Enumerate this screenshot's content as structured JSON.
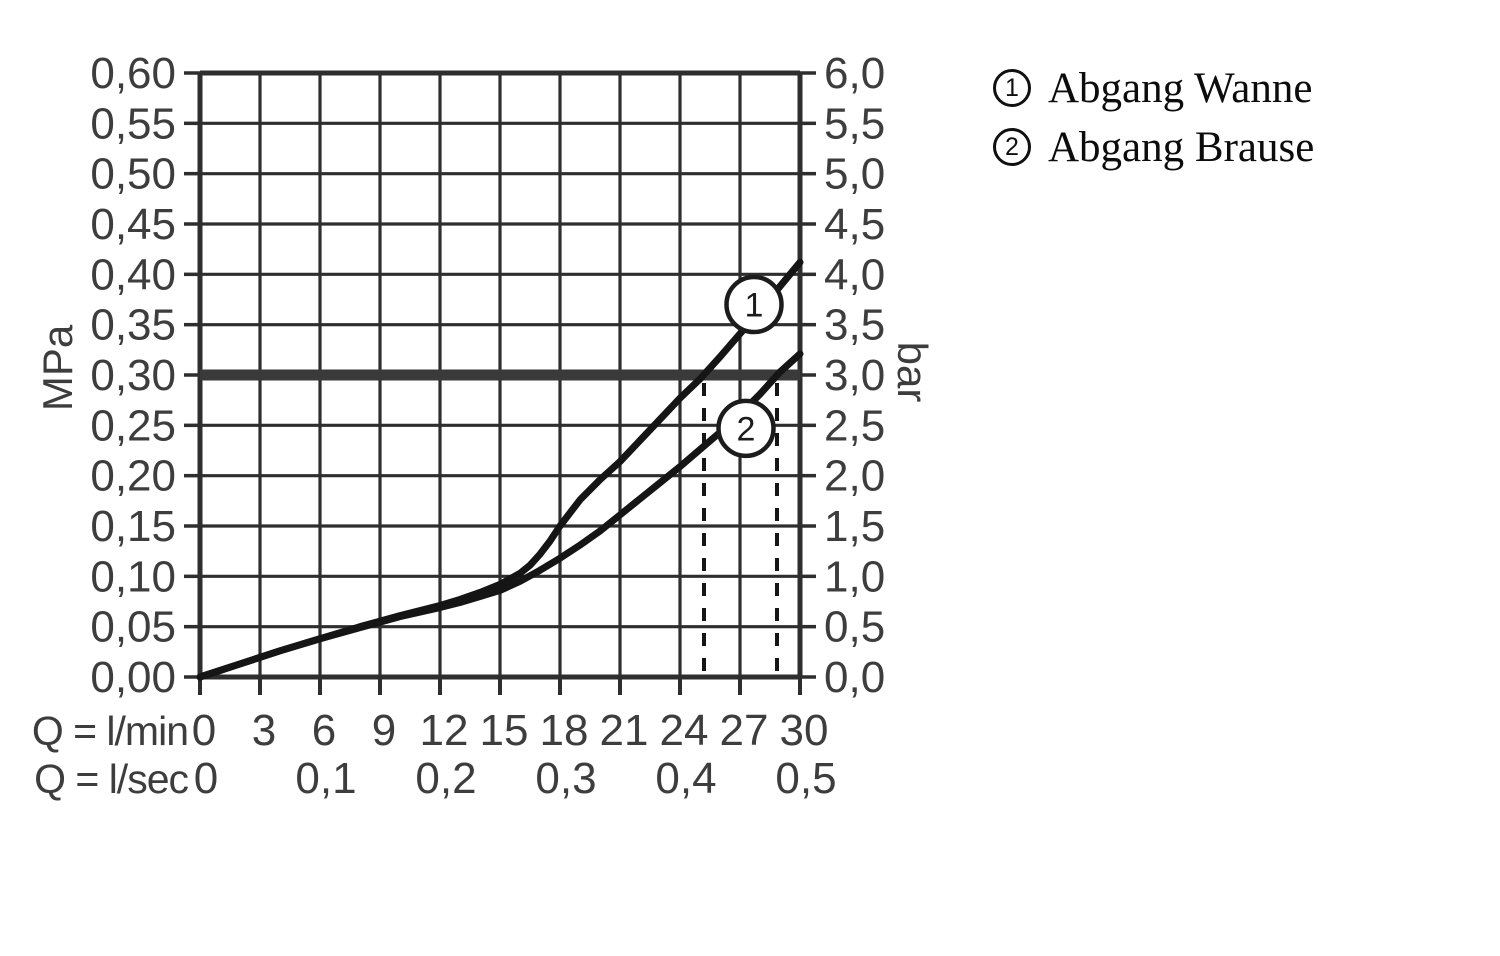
{
  "page": {
    "background": "#ffffff"
  },
  "legend": {
    "items": [
      {
        "symbol": "1",
        "label": "Abgang Wanne"
      },
      {
        "symbol": "2",
        "label": "Abgang Brause"
      }
    ]
  },
  "chart_data": {
    "type": "line",
    "title": "",
    "x_axis": {
      "label_row1": "Q = l/min",
      "label_row2": "Q = l/sec",
      "lmin_ticks": [
        "0",
        "3",
        "6",
        "9",
        "12",
        "15",
        "18",
        "21",
        "24",
        "27",
        "30"
      ],
      "lmin_tick_values": [
        0,
        3,
        6,
        9,
        12,
        15,
        18,
        21,
        24,
        27,
        30
      ],
      "lsec_ticks": [
        {
          "label": "0",
          "lmin": 0
        },
        {
          "label": "0,1",
          "lmin": 6
        },
        {
          "label": "0,2",
          "lmin": 12
        },
        {
          "label": "0,3",
          "lmin": 18
        },
        {
          "label": "0,4",
          "lmin": 24
        },
        {
          "label": "0,5",
          "lmin": 30
        }
      ],
      "range_lmin": [
        0,
        30
      ]
    },
    "y_axis_left": {
      "unit": "MPa",
      "ticks": [
        "0,00",
        "0,05",
        "0,10",
        "0,15",
        "0,20",
        "0,25",
        "0,30",
        "0,35",
        "0,40",
        "0,45",
        "0,50",
        "0,55",
        "0,60"
      ],
      "tick_values": [
        0,
        0.05,
        0.1,
        0.15,
        0.2,
        0.25,
        0.3,
        0.35,
        0.4,
        0.45,
        0.5,
        0.55,
        0.6
      ],
      "range": [
        0,
        0.6
      ]
    },
    "y_axis_right": {
      "unit": "bar",
      "ticks": [
        "0,0",
        "0,5",
        "1,0",
        "1,5",
        "2,0",
        "2,5",
        "3,0",
        "3,5",
        "4,0",
        "4,5",
        "5,0",
        "5,5",
        "6,0"
      ],
      "range": [
        0,
        6.0
      ]
    },
    "grid": true,
    "series": [
      {
        "name": "Abgang Wanne",
        "marker": "1",
        "points": [
          [
            0,
            0
          ],
          [
            2,
            0.013
          ],
          [
            4,
            0.026
          ],
          [
            6,
            0.038
          ],
          [
            8,
            0.05
          ],
          [
            10,
            0.061
          ],
          [
            12,
            0.071
          ],
          [
            13,
            0.077
          ],
          [
            14,
            0.084
          ],
          [
            15,
            0.092
          ],
          [
            16,
            0.103
          ],
          [
            16.5,
            0.111
          ],
          [
            17,
            0.122
          ],
          [
            17.5,
            0.135
          ],
          [
            18,
            0.15
          ],
          [
            18.5,
            0.163
          ],
          [
            19,
            0.176
          ],
          [
            20,
            0.196
          ],
          [
            21,
            0.214
          ],
          [
            22,
            0.235
          ],
          [
            23,
            0.256
          ],
          [
            24,
            0.277
          ],
          [
            25,
            0.296
          ],
          [
            26,
            0.318
          ],
          [
            27,
            0.341
          ],
          [
            28,
            0.364
          ],
          [
            29,
            0.388
          ],
          [
            30,
            0.412
          ]
        ]
      },
      {
        "name": "Abgang Brause",
        "marker": "2",
        "points": [
          [
            0,
            0
          ],
          [
            2,
            0.013
          ],
          [
            4,
            0.026
          ],
          [
            6,
            0.038
          ],
          [
            8,
            0.049
          ],
          [
            10,
            0.06
          ],
          [
            12,
            0.069
          ],
          [
            13,
            0.074
          ],
          [
            14,
            0.08
          ],
          [
            15,
            0.086
          ],
          [
            16,
            0.095
          ],
          [
            17,
            0.106
          ],
          [
            18,
            0.118
          ],
          [
            19,
            0.131
          ],
          [
            20,
            0.145
          ],
          [
            21,
            0.161
          ],
          [
            22,
            0.177
          ],
          [
            23,
            0.193
          ],
          [
            24,
            0.209
          ],
          [
            25,
            0.226
          ],
          [
            26,
            0.243
          ],
          [
            27,
            0.261
          ],
          [
            28,
            0.281
          ],
          [
            29,
            0.303
          ],
          [
            30,
            0.321
          ]
        ]
      }
    ],
    "reference_line": {
      "mpa": 0.3,
      "bar": 3.0
    },
    "guides_lmin": [
      25.2,
      28.85
    ],
    "markers": [
      {
        "symbol": "1",
        "lmin": 27.7,
        "mpa": 0.37
      },
      {
        "symbol": "2",
        "lmin": 27.3,
        "mpa": 0.247
      }
    ],
    "colors": {
      "curve": "#151515",
      "grid": "#2e2e2e",
      "labels": "#3d3d3d",
      "reference_line": "#3a3a3a",
      "marker_fill": "#ffffff",
      "background": "#ffffff"
    }
  }
}
